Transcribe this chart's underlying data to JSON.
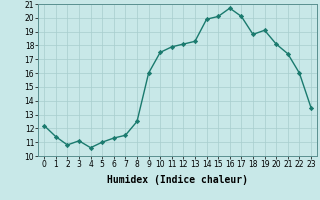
{
  "x": [
    0,
    1,
    2,
    3,
    4,
    5,
    6,
    7,
    8,
    9,
    10,
    11,
    12,
    13,
    14,
    15,
    16,
    17,
    18,
    19,
    20,
    21,
    22,
    23
  ],
  "y": [
    12.2,
    11.4,
    10.8,
    11.1,
    10.6,
    11.0,
    11.3,
    11.5,
    12.5,
    16.0,
    17.5,
    17.9,
    18.1,
    18.3,
    19.9,
    20.1,
    20.7,
    20.1,
    18.8,
    19.1,
    18.1,
    17.4,
    16.0,
    13.5
  ],
  "line_color": "#1a7a6e",
  "marker": "D",
  "markersize": 2.2,
  "linewidth": 1.0,
  "bg_color": "#c8e8e8",
  "grid_color": "#a8cece",
  "xlabel": "Humidex (Indice chaleur)",
  "xlabel_fontsize": 7,
  "xlim": [
    -0.5,
    23.5
  ],
  "ylim": [
    10,
    21
  ],
  "yticks": [
    10,
    11,
    12,
    13,
    14,
    15,
    16,
    17,
    18,
    19,
    20,
    21
  ],
  "xtick_labels": [
    "0",
    "1",
    "2",
    "3",
    "4",
    "5",
    "6",
    "7",
    "8",
    "9",
    "10",
    "11",
    "12",
    "13",
    "14",
    "15",
    "16",
    "17",
    "18",
    "19",
    "20",
    "21",
    "22",
    "23"
  ],
  "tick_fontsize": 5.5,
  "ylabel_fontsize": 5.5
}
